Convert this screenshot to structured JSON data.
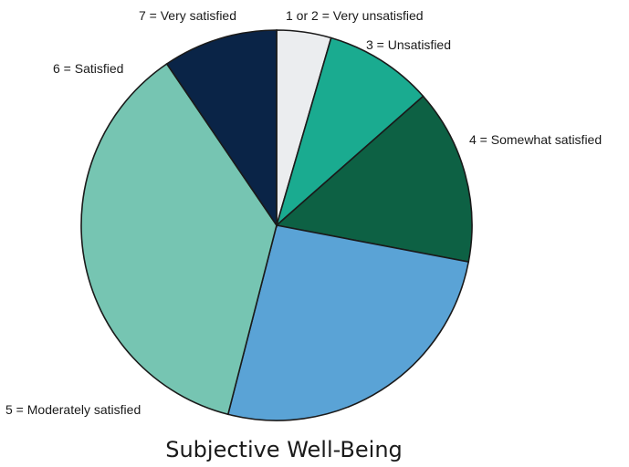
{
  "chart_data": {
    "type": "pie",
    "title": "Subjective Well-Being",
    "start_angle_deg": 0,
    "direction": "clockwise",
    "slices": [
      {
        "label": "1 or 2 = Very unsatisfied",
        "value": 4.5,
        "color": "#ebedef"
      },
      {
        "label": "3 = Unsatisfied",
        "value": 9.0,
        "color": "#1aab90"
      },
      {
        "label": "4 = Somewhat satisfied",
        "value": 14.5,
        "color": "#0d6144"
      },
      {
        "label": "5 = Moderately satisfied",
        "value": 26.0,
        "color": "#5aa3d6"
      },
      {
        "label": "6 = Satisfied",
        "value": 36.5,
        "color": "#76c5b2"
      },
      {
        "label": "7 = Very satisfied",
        "value": 9.5,
        "color": "#0a2447"
      }
    ]
  }
}
